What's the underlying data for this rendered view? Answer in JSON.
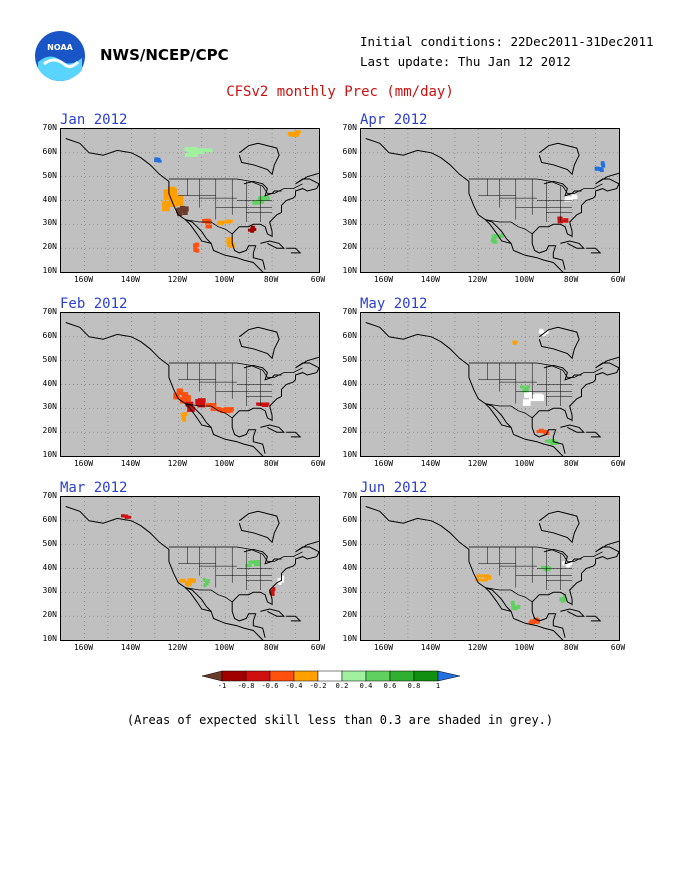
{
  "header": {
    "agency": "NWS/NCEP/CPC",
    "initial_conditions": "Initial conditions: 22Dec2011-31Dec2011",
    "last_update": "Last update: Thu Jan 12 2012",
    "title": "CFSv2 monthly Prec (mm/day)"
  },
  "panels": [
    {
      "id": "jan",
      "month": "Jan 2012"
    },
    {
      "id": "apr",
      "month": "Apr 2012"
    },
    {
      "id": "feb",
      "month": "Feb 2012"
    },
    {
      "id": "may",
      "month": "May 2012"
    },
    {
      "id": "mar",
      "month": "Mar 2012"
    },
    {
      "id": "jun",
      "month": "Jun 2012"
    }
  ],
  "axes": {
    "lat_labels": [
      "70N",
      "60N",
      "50N",
      "40N",
      "30N",
      "20N",
      "10N"
    ],
    "lon_labels": [
      "160W",
      "140W",
      "120W",
      "100W",
      "80W",
      "60W"
    ]
  },
  "colorbar": {
    "ticks": [
      "-1",
      "-0.8",
      "-0.6",
      "-0.4",
      "-0.2",
      "0.2",
      "0.4",
      "0.6",
      "0.8",
      "1"
    ],
    "colors": [
      "#6b3a2a",
      "#a00000",
      "#d01010",
      "#ff5010",
      "#ffa000",
      "#ffffff",
      "#a0f0a0",
      "#60d060",
      "#30b030",
      "#109010",
      "#2070e0"
    ]
  },
  "note": "(Areas of expected skill less than 0.3 are shaded in grey.)"
}
